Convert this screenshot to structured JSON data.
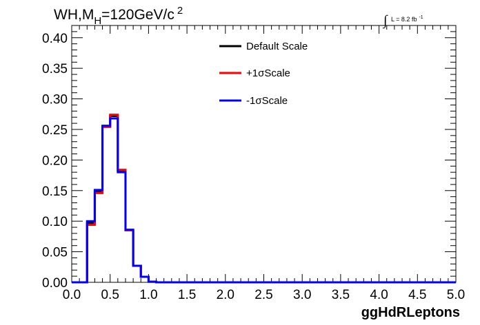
{
  "title": {
    "main": "WH,M",
    "sub": "H",
    "rest": "=120GeV/c",
    "sup": "2"
  },
  "lumi": {
    "integral": "∫",
    "text": "L = 8.2 fb",
    "sup": "-1"
  },
  "chart_data": {
    "type": "line",
    "style": "step-histogram",
    "xlabel": "ggHdRLeptons",
    "ylabel": "",
    "xlim": [
      0.0,
      5.0
    ],
    "ylim": [
      0.0,
      0.42
    ],
    "bin_width": 0.1,
    "x_ticks": [
      "0.0",
      "0.5",
      "1.0",
      "1.5",
      "2.0",
      "2.5",
      "3.0",
      "3.5",
      "4.0",
      "4.5",
      "5.0"
    ],
    "y_ticks": [
      "0.00",
      "0.05",
      "0.10",
      "0.15",
      "0.20",
      "0.25",
      "0.30",
      "0.35",
      "0.40"
    ],
    "grid": false,
    "legend_position": "top-center",
    "series": [
      {
        "name": "Default Scale",
        "color": "#000000",
        "values": [
          0,
          0,
          0.097,
          0.149,
          0.255,
          0.272,
          0.182,
          0.085,
          0.027,
          0.009,
          0.001,
          0,
          0,
          0,
          0,
          0,
          0,
          0,
          0,
          0,
          0,
          0,
          0,
          0,
          0,
          0,
          0,
          0,
          0,
          0,
          0,
          0,
          0,
          0,
          0,
          0,
          0,
          0,
          0,
          0,
          0,
          0,
          0,
          0,
          0,
          0,
          0,
          0,
          0,
          0
        ]
      },
      {
        "name": "+1σScale",
        "color": "#ff0000",
        "values": [
          0,
          0,
          0.094,
          0.146,
          0.254,
          0.274,
          0.184,
          0.085,
          0.027,
          0.009,
          0.001,
          0,
          0,
          0,
          0,
          0,
          0,
          0,
          0,
          0,
          0,
          0,
          0,
          0,
          0,
          0,
          0,
          0,
          0,
          0,
          0,
          0,
          0,
          0,
          0,
          0,
          0,
          0,
          0,
          0,
          0,
          0,
          0,
          0,
          0,
          0,
          0,
          0,
          0,
          0
        ]
      },
      {
        "name": "-1σScale",
        "color": "#0000ff",
        "values": [
          0,
          0,
          0.1,
          0.151,
          0.256,
          0.268,
          0.18,
          0.086,
          0.027,
          0.009,
          0.001,
          0,
          0,
          0,
          0,
          0,
          0,
          0,
          0,
          0,
          0,
          0,
          0,
          0,
          0,
          0,
          0,
          0,
          0,
          0,
          0,
          0,
          0,
          0,
          0,
          0,
          0,
          0,
          0,
          0,
          0,
          0,
          0,
          0,
          0,
          0,
          0,
          0,
          0,
          0
        ]
      }
    ]
  }
}
